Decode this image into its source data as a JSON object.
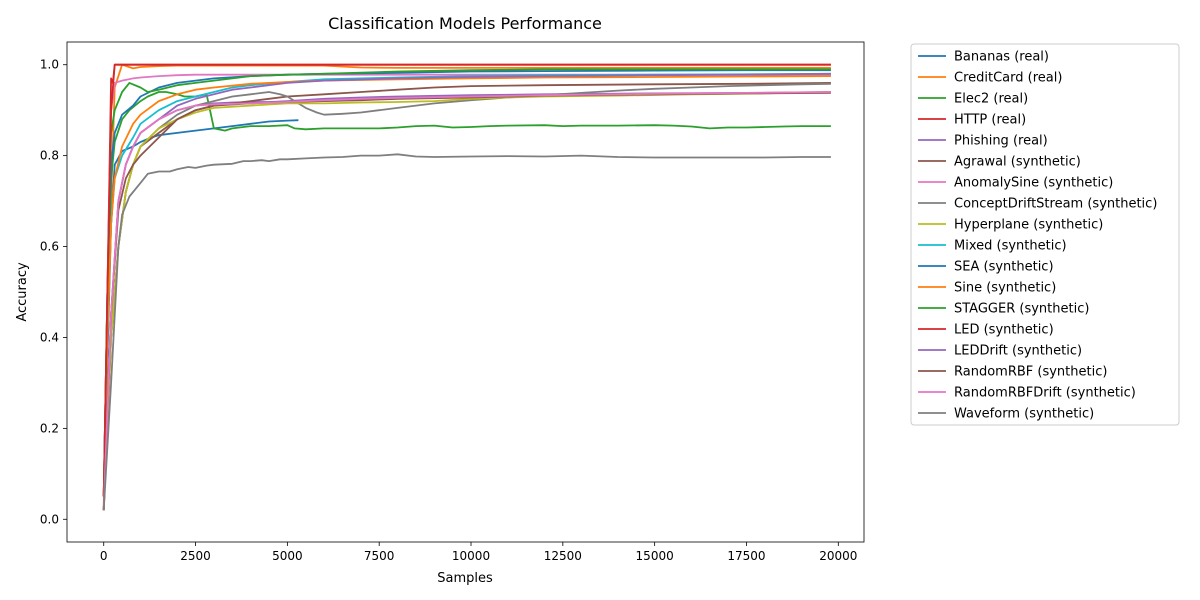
{
  "chart_data": {
    "type": "line",
    "title": "Classification Models Performance",
    "xlabel": "Samples",
    "ylabel": "Accuracy",
    "xlim": [
      -1000,
      20700
    ],
    "ylim": [
      -0.05,
      1.05
    ],
    "xticks": [
      0,
      2500,
      5000,
      7500,
      10000,
      12500,
      15000,
      17500,
      20000
    ],
    "xtick_labels": [
      "0",
      "2500",
      "5000",
      "7500",
      "10000",
      "12500",
      "15000",
      "17500",
      "20000"
    ],
    "yticks": [
      0.0,
      0.2,
      0.4,
      0.6,
      0.8,
      1.0
    ],
    "ytick_labels": [
      "0.0",
      "0.2",
      "0.4",
      "0.6",
      "0.8",
      "1.0"
    ],
    "grid": false,
    "legend_position": "outside-right",
    "series": [
      {
        "name": "Bananas (real)",
        "color": "#1f77b4",
        "x": [
          0,
          100,
          200,
          300,
          500,
          800,
          1000,
          1300,
          1500,
          2000,
          2500,
          3000,
          3500,
          4000,
          4500,
          5000,
          5300
        ],
        "y": [
          0.05,
          0.35,
          0.65,
          0.78,
          0.81,
          0.82,
          0.83,
          0.84,
          0.845,
          0.85,
          0.855,
          0.86,
          0.865,
          0.87,
          0.875,
          0.877,
          0.878
        ]
      },
      {
        "name": "CreditCard (real)",
        "color": "#ff7f0e",
        "x": [
          0,
          100,
          200,
          300,
          500,
          800,
          1000,
          1500,
          2000,
          3000,
          4000,
          5000,
          6000,
          7000,
          8000,
          10000,
          12000,
          15000,
          17500,
          19800
        ],
        "y": [
          0.03,
          0.4,
          0.7,
          0.95,
          1.0,
          0.992,
          0.995,
          0.997,
          0.998,
          0.998,
          0.998,
          0.998,
          0.998,
          0.994,
          0.993,
          0.993,
          0.993,
          0.993,
          0.993,
          0.993
        ]
      },
      {
        "name": "Elec2 (real)",
        "color": "#2ca02c",
        "x": [
          0,
          100,
          200,
          300,
          500,
          700,
          1000,
          1200,
          1500,
          1700,
          2000,
          2200,
          2500,
          2800,
          3000,
          3300,
          3500,
          4000,
          4500,
          5000,
          5200,
          5500,
          6000,
          6500,
          7000,
          7500,
          8000,
          8500,
          9000,
          9500,
          10000,
          10500,
          11000,
          12000,
          12500,
          13000,
          14000,
          15000,
          15500,
          16000,
          16500,
          17000,
          17500,
          18000,
          18500,
          19000,
          19500,
          19800
        ],
        "y": [
          0.05,
          0.4,
          0.75,
          0.83,
          0.88,
          0.9,
          0.92,
          0.93,
          0.94,
          0.94,
          0.935,
          0.93,
          0.93,
          0.935,
          0.86,
          0.855,
          0.86,
          0.865,
          0.865,
          0.867,
          0.86,
          0.858,
          0.86,
          0.86,
          0.86,
          0.86,
          0.862,
          0.865,
          0.866,
          0.862,
          0.863,
          0.865,
          0.866,
          0.867,
          0.865,
          0.866,
          0.866,
          0.867,
          0.866,
          0.864,
          0.86,
          0.862,
          0.862,
          0.863,
          0.864,
          0.865,
          0.865,
          0.865
        ]
      },
      {
        "name": "HTTP (real)",
        "color": "#d62728",
        "x": [
          0,
          100,
          200,
          250,
          300,
          500,
          1000,
          2000,
          5000,
          10000,
          15000,
          19800
        ],
        "y": [
          0.05,
          0.5,
          0.97,
          0.96,
          1.0,
          1.0,
          1.0,
          1.0,
          1.0,
          1.0,
          1.0,
          1.0
        ]
      },
      {
        "name": "Phishing (real)",
        "color": "#9467bd",
        "x": [
          0,
          200,
          400,
          600,
          800,
          1000,
          1500,
          2000,
          2500,
          3000,
          3500,
          4000,
          4500,
          5000,
          6000,
          7000,
          8000,
          10000,
          12000,
          15000,
          17500,
          19800
        ],
        "y": [
          0.02,
          0.45,
          0.7,
          0.78,
          0.82,
          0.85,
          0.88,
          0.9,
          0.91,
          0.915,
          0.917,
          0.918,
          0.918,
          0.92,
          0.925,
          0.928,
          0.93,
          0.933,
          0.935,
          0.937,
          0.938,
          0.94
        ]
      },
      {
        "name": "Agrawal (synthetic)",
        "color": "#8c564b",
        "x": [
          0,
          200,
          400,
          600,
          800,
          1000,
          1500,
          2000,
          2500,
          3000,
          3500,
          4000,
          4500,
          5000,
          6000,
          7000,
          8000,
          9000,
          10000,
          12000,
          15000,
          17500,
          19800
        ],
        "y": [
          0.02,
          0.4,
          0.6,
          0.72,
          0.78,
          0.82,
          0.85,
          0.88,
          0.9,
          0.91,
          0.915,
          0.92,
          0.925,
          0.93,
          0.935,
          0.94,
          0.945,
          0.95,
          0.953,
          0.955,
          0.957,
          0.958,
          0.96
        ]
      },
      {
        "name": "AnomalySine (synthetic)",
        "color": "#e377c2",
        "x": [
          0,
          100,
          200,
          300,
          500,
          800,
          1000,
          1500,
          2000,
          2500,
          3000,
          4000,
          5000,
          6000,
          8000,
          10000,
          12000,
          15000,
          17500,
          19800
        ],
        "y": [
          0.05,
          0.5,
          0.9,
          0.96,
          0.965,
          0.97,
          0.972,
          0.975,
          0.977,
          0.978,
          0.978,
          0.978,
          0.978,
          0.978,
          0.978,
          0.978,
          0.978,
          0.978,
          0.978,
          0.978
        ]
      },
      {
        "name": "ConceptDriftStream (synthetic)",
        "color": "#7f7f7f",
        "x": [
          0,
          200,
          400,
          600,
          800,
          1000,
          1500,
          2000,
          2500,
          3000,
          3500,
          4000,
          4500,
          4800,
          5000,
          5200,
          5500,
          5800,
          6000,
          6500,
          7000,
          7500,
          8000,
          9000,
          10000,
          11000,
          12000,
          13000,
          14000,
          15000,
          16000,
          17000,
          18000,
          19000,
          19800
        ],
        "y": [
          0.02,
          0.4,
          0.6,
          0.72,
          0.78,
          0.82,
          0.86,
          0.89,
          0.91,
          0.92,
          0.93,
          0.935,
          0.94,
          0.935,
          0.93,
          0.92,
          0.905,
          0.895,
          0.89,
          0.892,
          0.895,
          0.9,
          0.905,
          0.915,
          0.922,
          0.928,
          0.933,
          0.938,
          0.943,
          0.947,
          0.95,
          0.953,
          0.955,
          0.957,
          0.958
        ]
      },
      {
        "name": "Hyperplane (synthetic)",
        "color": "#bcbd22",
        "x": [
          0,
          200,
          400,
          600,
          800,
          1000,
          1500,
          2000,
          2500,
          3000,
          4000,
          5000,
          6000,
          7000,
          8000,
          9000,
          10000,
          11000,
          12000,
          14000,
          16000,
          18000,
          19800
        ],
        "y": [
          0.02,
          0.4,
          0.6,
          0.72,
          0.78,
          0.82,
          0.86,
          0.88,
          0.895,
          0.905,
          0.91,
          0.915,
          0.915,
          0.917,
          0.918,
          0.92,
          0.925,
          0.928,
          0.93,
          0.932,
          0.935,
          0.937,
          0.94
        ]
      },
      {
        "name": "Mixed (synthetic)",
        "color": "#17becf",
        "x": [
          0,
          100,
          200,
          300,
          500,
          800,
          1000,
          1500,
          2000,
          2500,
          3000,
          3500,
          4000,
          5000,
          6000,
          8000,
          10000,
          12000,
          15000,
          17500,
          19800
        ],
        "y": [
          0.05,
          0.4,
          0.65,
          0.75,
          0.8,
          0.84,
          0.87,
          0.9,
          0.92,
          0.93,
          0.94,
          0.95,
          0.955,
          0.962,
          0.968,
          0.972,
          0.975,
          0.977,
          0.978,
          0.979,
          0.98
        ]
      },
      {
        "name": "SEA (synthetic)",
        "color": "#1f77b4",
        "x": [
          0,
          100,
          200,
          300,
          500,
          800,
          1000,
          1500,
          2000,
          2500,
          3000,
          4000,
          5000,
          6000,
          8000,
          10000,
          12000,
          15000,
          17500,
          19800
        ],
        "y": [
          0.05,
          0.5,
          0.78,
          0.85,
          0.89,
          0.91,
          0.93,
          0.95,
          0.96,
          0.965,
          0.97,
          0.975,
          0.978,
          0.98,
          0.982,
          0.985,
          0.986,
          0.987,
          0.988,
          0.988
        ]
      },
      {
        "name": "Sine (synthetic)",
        "color": "#ff7f0e",
        "x": [
          0,
          100,
          200,
          300,
          500,
          800,
          1000,
          1500,
          2000,
          2500,
          3000,
          4000,
          5000,
          6000,
          8000,
          10000,
          12000,
          15000,
          17500,
          19800
        ],
        "y": [
          0.05,
          0.4,
          0.65,
          0.75,
          0.82,
          0.87,
          0.89,
          0.92,
          0.935,
          0.945,
          0.95,
          0.958,
          0.962,
          0.965,
          0.968,
          0.97,
          0.972,
          0.973,
          0.974,
          0.975
        ]
      },
      {
        "name": "STAGGER (synthetic)",
        "color": "#2ca02c",
        "x": [
          0,
          100,
          200,
          300,
          500,
          700,
          1000,
          1200,
          1500,
          2000,
          2500,
          3000,
          3500,
          4000,
          5000,
          6000,
          8000,
          10000,
          12000,
          15000,
          17500,
          19800
        ],
        "y": [
          0.05,
          0.5,
          0.85,
          0.9,
          0.94,
          0.96,
          0.95,
          0.94,
          0.945,
          0.955,
          0.96,
          0.965,
          0.97,
          0.975,
          0.978,
          0.98,
          0.985,
          0.988,
          0.99,
          0.99,
          0.99,
          0.99
        ]
      },
      {
        "name": "LED (synthetic)",
        "color": "#d62728",
        "x": [
          0,
          100,
          200,
          300,
          500,
          800,
          1000,
          1500,
          2000,
          3000,
          5000,
          8000,
          10000,
          12000,
          15000,
          17500,
          19800
        ],
        "y": [
          0.05,
          0.5,
          0.9,
          1.0,
          1.0,
          1.0,
          1.0,
          1.0,
          1.0,
          1.0,
          1.0,
          1.0,
          1.0,
          1.0,
          1.0,
          1.0,
          1.0
        ]
      },
      {
        "name": "LEDDrift (synthetic)",
        "color": "#9467bd",
        "x": [
          0,
          200,
          400,
          600,
          800,
          1000,
          1500,
          2000,
          2500,
          3000,
          3500,
          4000,
          5000,
          6000,
          8000,
          10000,
          12000,
          15000,
          17500,
          19800
        ],
        "y": [
          0.02,
          0.45,
          0.7,
          0.78,
          0.82,
          0.85,
          0.88,
          0.91,
          0.925,
          0.935,
          0.945,
          0.95,
          0.96,
          0.965,
          0.97,
          0.973,
          0.975,
          0.977,
          0.978,
          0.98
        ]
      },
      {
        "name": "RandomRBF (synthetic)",
        "color": "#8c564b",
        "x": [
          0,
          200,
          400,
          600,
          800,
          1000,
          1500,
          2000,
          2500,
          3000,
          4000,
          5000,
          6000,
          7000,
          8000,
          10000,
          12000,
          15000,
          17500,
          19800
        ],
        "y": [
          0.02,
          0.45,
          0.68,
          0.75,
          0.78,
          0.8,
          0.84,
          0.88,
          0.9,
          0.91,
          0.915,
          0.918,
          0.92,
          0.922,
          0.925,
          0.928,
          0.932,
          0.935,
          0.937,
          0.938
        ]
      },
      {
        "name": "RandomRBFDrift (synthetic)",
        "color": "#e377c2",
        "x": [
          0,
          200,
          400,
          600,
          800,
          1000,
          1500,
          2000,
          2500,
          3000,
          4000,
          5000,
          6000,
          7000,
          8000,
          10000,
          12000,
          15000,
          17500,
          19800
        ],
        "y": [
          0.02,
          0.45,
          0.7,
          0.78,
          0.82,
          0.85,
          0.88,
          0.9,
          0.91,
          0.913,
          0.915,
          0.918,
          0.922,
          0.925,
          0.927,
          0.93,
          0.933,
          0.936,
          0.938,
          0.94
        ]
      },
      {
        "name": "Waveform (synthetic)",
        "color": "#7f7f7f",
        "x": [
          0,
          200,
          400,
          500,
          700,
          1000,
          1200,
          1500,
          1800,
          2000,
          2300,
          2500,
          2800,
          3000,
          3500,
          3800,
          4000,
          4300,
          4500,
          4800,
          5000,
          5500,
          6000,
          6500,
          7000,
          7500,
          8000,
          8500,
          9000,
          10000,
          11000,
          12000,
          13000,
          14000,
          15000,
          16000,
          17000,
          18000,
          19000,
          19800
        ],
        "y": [
          0.02,
          0.3,
          0.6,
          0.67,
          0.71,
          0.74,
          0.76,
          0.765,
          0.765,
          0.77,
          0.775,
          0.773,
          0.778,
          0.78,
          0.782,
          0.788,
          0.788,
          0.79,
          0.788,
          0.792,
          0.792,
          0.794,
          0.796,
          0.797,
          0.8,
          0.8,
          0.803,
          0.798,
          0.797,
          0.798,
          0.799,
          0.798,
          0.8,
          0.797,
          0.796,
          0.796,
          0.796,
          0.796,
          0.797,
          0.797
        ]
      }
    ]
  }
}
